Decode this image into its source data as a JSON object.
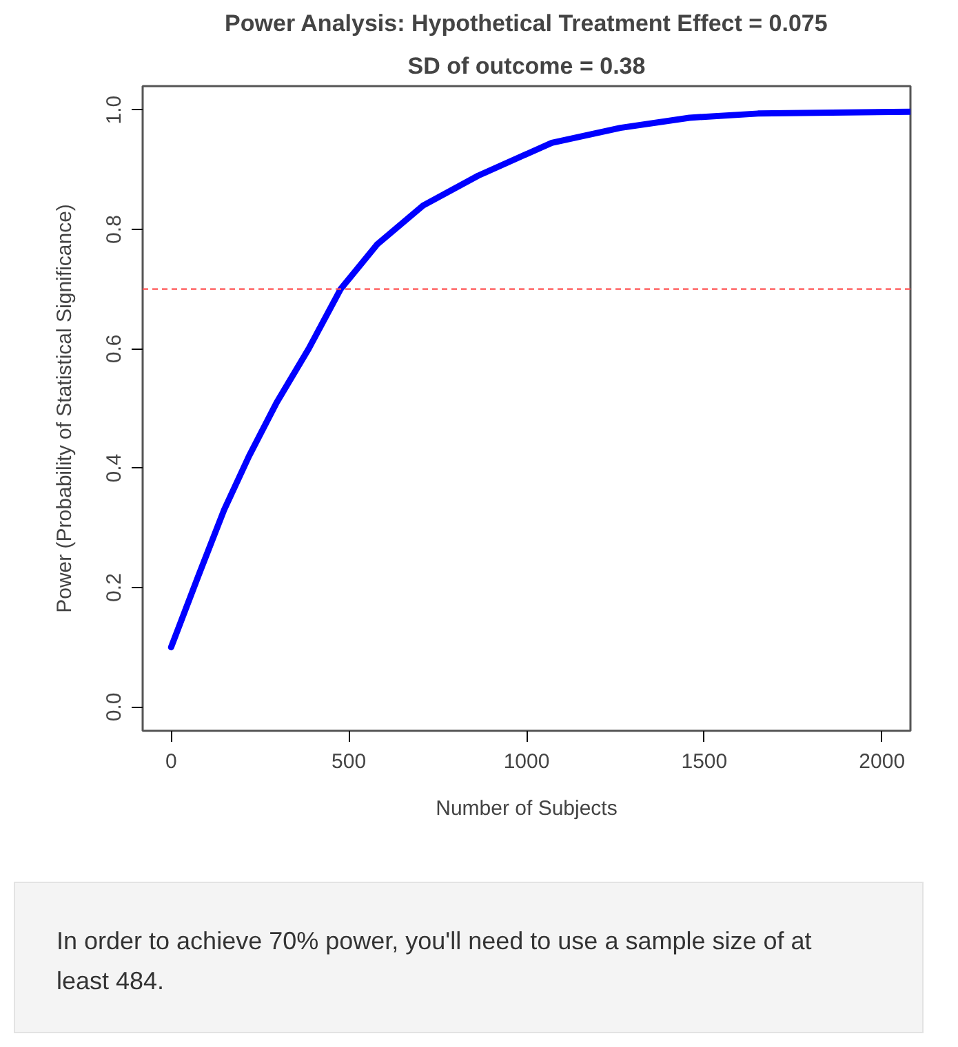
{
  "chart_data": {
    "type": "line",
    "title": "Power Analysis: Hypothetical Treatment Effect = 0.075",
    "subtitle": "SD of outcome = 0.38",
    "xlabel": "Number of Subjects",
    "ylabel": "Power (Probability of Statistical Significance)",
    "x": [
      0,
      77,
      149,
      219,
      297,
      387,
      477,
      580,
      709,
      864,
      1071,
      1264,
      1458,
      1651,
      2080
    ],
    "series": [
      {
        "color": "#0000ff",
        "values": [
          0.1,
          0.22,
          0.33,
          0.42,
          0.51,
          0.6,
          0.7,
          0.775,
          0.84,
          0.89,
          0.945,
          0.97,
          0.987,
          0.994,
          0.997
        ]
      }
    ],
    "xlim": [
      -80,
      2080
    ],
    "ylim": [
      -0.04,
      1.04
    ],
    "xticks": [
      0,
      500,
      1000,
      1500,
      2000
    ],
    "yticks": [
      {
        "value": 0,
        "label": "0.0"
      },
      0.2,
      0.4,
      0.6,
      0.8,
      {
        "value": 1,
        "label": "1.0"
      }
    ],
    "ref_lines": [
      {
        "axis": "y",
        "value": 0.7,
        "color": "#ff5050",
        "line_style": "dashed"
      }
    ],
    "grid": false,
    "marker": "none",
    "line_style": "solid",
    "annotations": [
      "In order to achieve 70% power, you'll need to use a sample size of at least 484."
    ]
  }
}
